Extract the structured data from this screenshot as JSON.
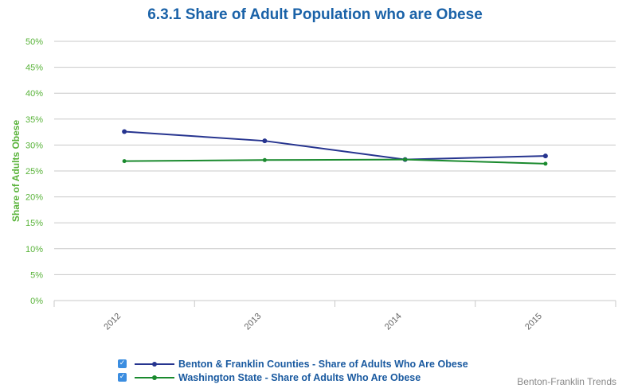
{
  "colors": {
    "title": "#1a62a8",
    "axis_text": "#59b33a",
    "grid": "#c8c8c8",
    "series1": "#26348f",
    "series2": "#1a8a2e"
  },
  "legend": {
    "checkbox_glyph": "✓"
  },
  "credit": "Benton-Franklin Trends",
  "chart_data": {
    "type": "line",
    "title": "6.3.1 Share of Adult Population who are Obese",
    "xlabel": "",
    "ylabel": "Share of Adults Obese",
    "categories": [
      "2012",
      "2013",
      "2014",
      "2015"
    ],
    "ylim": [
      0,
      50
    ],
    "yticks": [
      "0%",
      "5%",
      "10%",
      "15%",
      "20%",
      "25%",
      "30%",
      "35%",
      "40%",
      "45%",
      "50%"
    ],
    "grid": true,
    "legend_position": "bottom-left",
    "series": [
      {
        "name": "Benton & Franklin Counties - Share of Adults Who Are Obese",
        "values": [
          32.6,
          30.8,
          27.2,
          27.9
        ]
      },
      {
        "name": "Washington State - Share of Adults Who Are Obese",
        "values": [
          26.9,
          27.1,
          27.2,
          26.4
        ]
      }
    ]
  }
}
